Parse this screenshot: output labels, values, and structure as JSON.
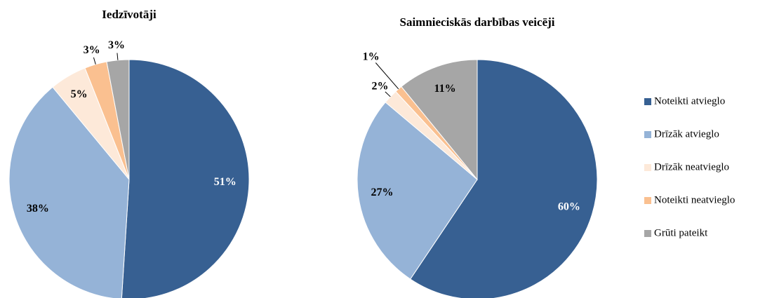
{
  "chart_data": [
    {
      "type": "pie",
      "title": "Iedzīvotāji",
      "values": [
        51,
        38,
        5,
        3,
        3
      ],
      "value_labels": [
        "51%",
        "38%",
        "5%",
        "3%",
        "3%"
      ]
    },
    {
      "type": "pie",
      "title": "Saimnieciskās darbības veicēji",
      "values": [
        60,
        27,
        2,
        1,
        11
      ],
      "value_labels": [
        "60%",
        "27%",
        "2%",
        "1%",
        "11%"
      ]
    }
  ],
  "legend": {
    "categories": [
      "Noteikti atvieglo",
      "Drīzāk atvieglo",
      "Drīzāk neatvieglo",
      "Noteikti neatvieglo",
      "Grūti pateikt"
    ],
    "colors": [
      "#376092",
      "#95b3d7",
      "#fde9d9",
      "#fac090",
      "#a6a6a6"
    ]
  }
}
